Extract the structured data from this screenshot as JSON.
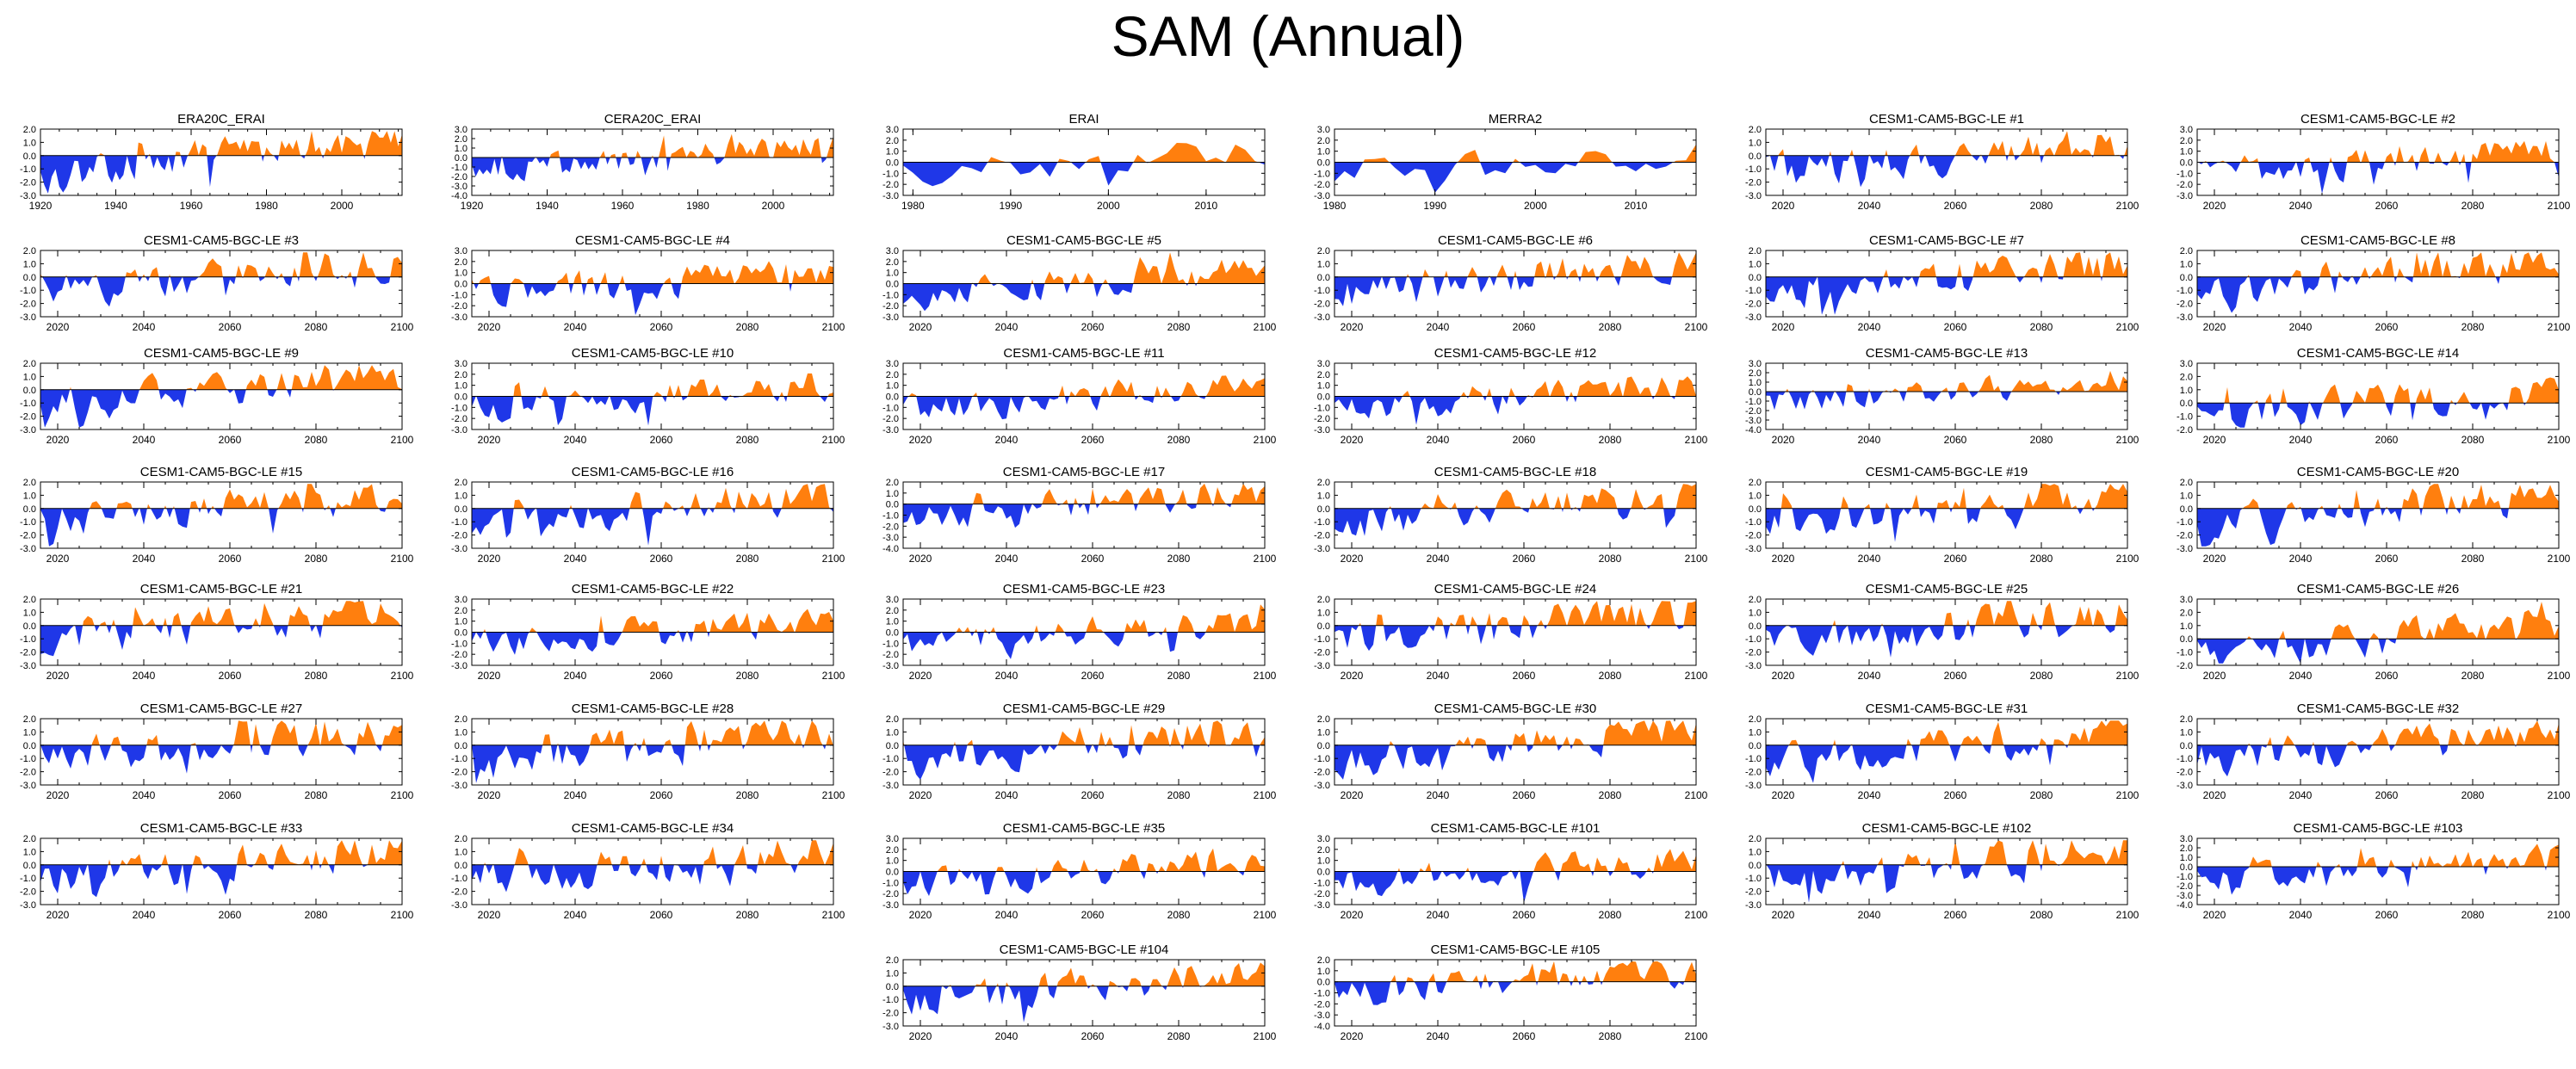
{
  "title": "SAM (Annual)",
  "colors": {
    "positive": "#ff7f0e",
    "negative": "#1f37e8",
    "axis": "#000000",
    "zero": "#000000"
  },
  "chart_data": [
    {
      "type": "area",
      "title": "ERA20C_ERAI",
      "x_range": [
        1920,
        2016
      ],
      "xticks": [
        1920,
        1940,
        1960,
        1980,
        2000
      ],
      "ylim": [
        -3,
        2
      ],
      "yticks": [
        -3,
        -2,
        -1,
        0,
        1,
        2
      ],
      "seed": 1,
      "trend": 1.2
    },
    {
      "type": "area",
      "title": "CERA20C_ERAI",
      "x_range": [
        1920,
        2016
      ],
      "xticks": [
        1920,
        1940,
        1960,
        1980,
        2000
      ],
      "ylim": [
        -4,
        3
      ],
      "yticks": [
        -4,
        -3,
        -2,
        -1,
        0,
        1,
        2,
        3
      ],
      "seed": 2,
      "trend": 0.9
    },
    {
      "type": "area",
      "title": "ERAI",
      "x_range": [
        1979,
        2016
      ],
      "xticks": [
        1980,
        1990,
        2000,
        2010
      ],
      "ylim": [
        -3,
        3
      ],
      "yticks": [
        -3,
        -2,
        -1,
        0,
        1,
        2,
        3
      ],
      "seed": 3,
      "trend": 0.6
    },
    {
      "type": "area",
      "title": "MERRA2",
      "x_range": [
        1980,
        2016
      ],
      "xticks": [
        1980,
        1990,
        2000,
        2010
      ],
      "ylim": [
        -3,
        3
      ],
      "yticks": [
        -3,
        -2,
        -1,
        0,
        1,
        2,
        3
      ],
      "seed": 4,
      "trend": 0.6
    },
    {
      "type": "area",
      "title": "CESM1-CAM5-BGC-LE #1",
      "x_range": [
        2016,
        2100
      ],
      "xticks": [
        2020,
        2040,
        2060,
        2080,
        2100
      ],
      "ylim": [
        -3,
        2
      ],
      "yticks": [
        -3,
        -2,
        -1,
        0,
        1,
        2
      ],
      "seed": 5,
      "trend": 0.8
    },
    {
      "type": "area",
      "title": "CESM1-CAM5-BGC-LE #2",
      "x_range": [
        2016,
        2100
      ],
      "xticks": [
        2020,
        2040,
        2060,
        2080,
        2100
      ],
      "ylim": [
        -3,
        3
      ],
      "yticks": [
        -3,
        -2,
        -1,
        0,
        1,
        2,
        3
      ],
      "seed": 6,
      "trend": 0.8
    },
    {
      "type": "area",
      "title": "CESM1-CAM5-BGC-LE #3",
      "x_range": [
        2016,
        2100
      ],
      "xticks": [
        2020,
        2040,
        2060,
        2080,
        2100
      ],
      "ylim": [
        -3,
        2
      ],
      "yticks": [
        -3,
        -2,
        -1,
        0,
        1,
        2
      ],
      "seed": 7,
      "trend": 0.8
    },
    {
      "type": "area",
      "title": "CESM1-CAM5-BGC-LE #4",
      "x_range": [
        2016,
        2100
      ],
      "xticks": [
        2020,
        2040,
        2060,
        2080,
        2100
      ],
      "ylim": [
        -3,
        3
      ],
      "yticks": [
        -3,
        -2,
        -1,
        0,
        1,
        2,
        3
      ],
      "seed": 8,
      "trend": 0.8
    },
    {
      "type": "area",
      "title": "CESM1-CAM5-BGC-LE #5",
      "x_range": [
        2016,
        2100
      ],
      "xticks": [
        2020,
        2040,
        2060,
        2080,
        2100
      ],
      "ylim": [
        -3,
        3
      ],
      "yticks": [
        -3,
        -2,
        -1,
        0,
        1,
        2,
        3
      ],
      "seed": 9,
      "trend": 0.8
    },
    {
      "type": "area",
      "title": "CESM1-CAM5-BGC-LE #6",
      "x_range": [
        2016,
        2100
      ],
      "xticks": [
        2020,
        2040,
        2060,
        2080,
        2100
      ],
      "ylim": [
        -3,
        2
      ],
      "yticks": [
        -3,
        -2,
        -1,
        0,
        1,
        2
      ],
      "seed": 10,
      "trend": 0.8
    },
    {
      "type": "area",
      "title": "CESM1-CAM5-BGC-LE #7",
      "x_range": [
        2016,
        2100
      ],
      "xticks": [
        2020,
        2040,
        2060,
        2080,
        2100
      ],
      "ylim": [
        -3,
        2
      ],
      "yticks": [
        -3,
        -2,
        -1,
        0,
        1,
        2
      ],
      "seed": 11,
      "trend": 0.8
    },
    {
      "type": "area",
      "title": "CESM1-CAM5-BGC-LE #8",
      "x_range": [
        2016,
        2100
      ],
      "xticks": [
        2020,
        2040,
        2060,
        2080,
        2100
      ],
      "ylim": [
        -3,
        2
      ],
      "yticks": [
        -3,
        -2,
        -1,
        0,
        1,
        2
      ],
      "seed": 12,
      "trend": 0.8
    },
    {
      "type": "area",
      "title": "CESM1-CAM5-BGC-LE #9",
      "x_range": [
        2016,
        2100
      ],
      "xticks": [
        2020,
        2040,
        2060,
        2080,
        2100
      ],
      "ylim": [
        -3,
        2
      ],
      "yticks": [
        -3,
        -2,
        -1,
        0,
        1,
        2
      ],
      "seed": 13,
      "trend": 0.8
    },
    {
      "type": "area",
      "title": "CESM1-CAM5-BGC-LE #10",
      "x_range": [
        2016,
        2100
      ],
      "xticks": [
        2020,
        2040,
        2060,
        2080,
        2100
      ],
      "ylim": [
        -3,
        3
      ],
      "yticks": [
        -3,
        -2,
        -1,
        0,
        1,
        2,
        3
      ],
      "seed": 14,
      "trend": 0.8
    },
    {
      "type": "area",
      "title": "CESM1-CAM5-BGC-LE #11",
      "x_range": [
        2016,
        2100
      ],
      "xticks": [
        2020,
        2040,
        2060,
        2080,
        2100
      ],
      "ylim": [
        -3,
        3
      ],
      "yticks": [
        -3,
        -2,
        -1,
        0,
        1,
        2,
        3
      ],
      "seed": 15,
      "trend": 0.8
    },
    {
      "type": "area",
      "title": "CESM1-CAM5-BGC-LE #12",
      "x_range": [
        2016,
        2100
      ],
      "xticks": [
        2020,
        2040,
        2060,
        2080,
        2100
      ],
      "ylim": [
        -3,
        3
      ],
      "yticks": [
        -3,
        -2,
        -1,
        0,
        1,
        2,
        3
      ],
      "seed": 16,
      "trend": 0.8
    },
    {
      "type": "area",
      "title": "CESM1-CAM5-BGC-LE #13",
      "x_range": [
        2016,
        2100
      ],
      "xticks": [
        2020,
        2040,
        2060,
        2080,
        2100
      ],
      "ylim": [
        -4,
        3
      ],
      "yticks": [
        -4,
        -3,
        -2,
        -1,
        0,
        1,
        2,
        3
      ],
      "seed": 17,
      "trend": 0.8
    },
    {
      "type": "area",
      "title": "CESM1-CAM5-BGC-LE #14",
      "x_range": [
        2016,
        2100
      ],
      "xticks": [
        2020,
        2040,
        2060,
        2080,
        2100
      ],
      "ylim": [
        -2,
        3
      ],
      "yticks": [
        -2,
        -1,
        0,
        1,
        2,
        3
      ],
      "seed": 18,
      "trend": 0.8
    },
    {
      "type": "area",
      "title": "CESM1-CAM5-BGC-LE #15",
      "x_range": [
        2016,
        2100
      ],
      "xticks": [
        2020,
        2040,
        2060,
        2080,
        2100
      ],
      "ylim": [
        -3,
        2
      ],
      "yticks": [
        -3,
        -2,
        -1,
        0,
        1,
        2
      ],
      "seed": 19,
      "trend": 0.8
    },
    {
      "type": "area",
      "title": "CESM1-CAM5-BGC-LE #16",
      "x_range": [
        2016,
        2100
      ],
      "xticks": [
        2020,
        2040,
        2060,
        2080,
        2100
      ],
      "ylim": [
        -3,
        2
      ],
      "yticks": [
        -3,
        -2,
        -1,
        0,
        1,
        2
      ],
      "seed": 20,
      "trend": 0.8
    },
    {
      "type": "area",
      "title": "CESM1-CAM5-BGC-LE #17",
      "x_range": [
        2016,
        2100
      ],
      "xticks": [
        2020,
        2040,
        2060,
        2080,
        2100
      ],
      "ylim": [
        -4,
        2
      ],
      "yticks": [
        -4,
        -3,
        -2,
        -1,
        0,
        1,
        2
      ],
      "seed": 21,
      "trend": 0.8
    },
    {
      "type": "area",
      "title": "CESM1-CAM5-BGC-LE #18",
      "x_range": [
        2016,
        2100
      ],
      "xticks": [
        2020,
        2040,
        2060,
        2080,
        2100
      ],
      "ylim": [
        -3,
        2
      ],
      "yticks": [
        -3,
        -2,
        -1,
        0,
        1,
        2
      ],
      "seed": 22,
      "trend": 0.8
    },
    {
      "type": "area",
      "title": "CESM1-CAM5-BGC-LE #19",
      "x_range": [
        2016,
        2100
      ],
      "xticks": [
        2020,
        2040,
        2060,
        2080,
        2100
      ],
      "ylim": [
        -3,
        2
      ],
      "yticks": [
        -3,
        -2,
        -1,
        0,
        1,
        2
      ],
      "seed": 23,
      "trend": 0.8
    },
    {
      "type": "area",
      "title": "CESM1-CAM5-BGC-LE #20",
      "x_range": [
        2016,
        2100
      ],
      "xticks": [
        2020,
        2040,
        2060,
        2080,
        2100
      ],
      "ylim": [
        -3,
        2
      ],
      "yticks": [
        -3,
        -2,
        -1,
        0,
        1,
        2
      ],
      "seed": 24,
      "trend": 0.8
    },
    {
      "type": "area",
      "title": "CESM1-CAM5-BGC-LE #21",
      "x_range": [
        2016,
        2100
      ],
      "xticks": [
        2020,
        2040,
        2060,
        2080,
        2100
      ],
      "ylim": [
        -3,
        2
      ],
      "yticks": [
        -3,
        -2,
        -1,
        0,
        1,
        2
      ],
      "seed": 25,
      "trend": 0.8
    },
    {
      "type": "area",
      "title": "CESM1-CAM5-BGC-LE #22",
      "x_range": [
        2016,
        2100
      ],
      "xticks": [
        2020,
        2040,
        2060,
        2080,
        2100
      ],
      "ylim": [
        -3,
        3
      ],
      "yticks": [
        -3,
        -2,
        -1,
        0,
        1,
        2,
        3
      ],
      "seed": 26,
      "trend": 0.8
    },
    {
      "type": "area",
      "title": "CESM1-CAM5-BGC-LE #23",
      "x_range": [
        2016,
        2100
      ],
      "xticks": [
        2020,
        2040,
        2060,
        2080,
        2100
      ],
      "ylim": [
        -3,
        3
      ],
      "yticks": [
        -3,
        -2,
        -1,
        0,
        1,
        2,
        3
      ],
      "seed": 27,
      "trend": 0.8
    },
    {
      "type": "area",
      "title": "CESM1-CAM5-BGC-LE #24",
      "x_range": [
        2016,
        2100
      ],
      "xticks": [
        2020,
        2040,
        2060,
        2080,
        2100
      ],
      "ylim": [
        -3,
        2
      ],
      "yticks": [
        -3,
        -2,
        -1,
        0,
        1,
        2
      ],
      "seed": 28,
      "trend": 0.8
    },
    {
      "type": "area",
      "title": "CESM1-CAM5-BGC-LE #25",
      "x_range": [
        2016,
        2100
      ],
      "xticks": [
        2020,
        2040,
        2060,
        2080,
        2100
      ],
      "ylim": [
        -3,
        2
      ],
      "yticks": [
        -3,
        -2,
        -1,
        0,
        1,
        2
      ],
      "seed": 29,
      "trend": 0.8
    },
    {
      "type": "area",
      "title": "CESM1-CAM5-BGC-LE #26",
      "x_range": [
        2016,
        2100
      ],
      "xticks": [
        2020,
        2040,
        2060,
        2080,
        2100
      ],
      "ylim": [
        -2,
        3
      ],
      "yticks": [
        -2,
        -1,
        0,
        1,
        2,
        3
      ],
      "seed": 30,
      "trend": 0.8
    },
    {
      "type": "area",
      "title": "CESM1-CAM5-BGC-LE #27",
      "x_range": [
        2016,
        2100
      ],
      "xticks": [
        2020,
        2040,
        2060,
        2080,
        2100
      ],
      "ylim": [
        -3,
        2
      ],
      "yticks": [
        -3,
        -2,
        -1,
        0,
        1,
        2
      ],
      "seed": 31,
      "trend": 0.8
    },
    {
      "type": "area",
      "title": "CESM1-CAM5-BGC-LE #28",
      "x_range": [
        2016,
        2100
      ],
      "xticks": [
        2020,
        2040,
        2060,
        2080,
        2100
      ],
      "ylim": [
        -3,
        2
      ],
      "yticks": [
        -3,
        -2,
        -1,
        0,
        1,
        2
      ],
      "seed": 32,
      "trend": 0.8
    },
    {
      "type": "area",
      "title": "CESM1-CAM5-BGC-LE #29",
      "x_range": [
        2016,
        2100
      ],
      "xticks": [
        2020,
        2040,
        2060,
        2080,
        2100
      ],
      "ylim": [
        -3,
        2
      ],
      "yticks": [
        -3,
        -2,
        -1,
        0,
        1,
        2
      ],
      "seed": 33,
      "trend": 0.8
    },
    {
      "type": "area",
      "title": "CESM1-CAM5-BGC-LE #30",
      "x_range": [
        2016,
        2100
      ],
      "xticks": [
        2020,
        2040,
        2060,
        2080,
        2100
      ],
      "ylim": [
        -3,
        2
      ],
      "yticks": [
        -3,
        -2,
        -1,
        0,
        1,
        2
      ],
      "seed": 34,
      "trend": 0.8
    },
    {
      "type": "area",
      "title": "CESM1-CAM5-BGC-LE #31",
      "x_range": [
        2016,
        2100
      ],
      "xticks": [
        2020,
        2040,
        2060,
        2080,
        2100
      ],
      "ylim": [
        -3,
        2
      ],
      "yticks": [
        -3,
        -2,
        -1,
        0,
        1,
        2
      ],
      "seed": 35,
      "trend": 0.8
    },
    {
      "type": "area",
      "title": "CESM1-CAM5-BGC-LE #32",
      "x_range": [
        2016,
        2100
      ],
      "xticks": [
        2020,
        2040,
        2060,
        2080,
        2100
      ],
      "ylim": [
        -3,
        2
      ],
      "yticks": [
        -3,
        -2,
        -1,
        0,
        1,
        2
      ],
      "seed": 36,
      "trend": 0.8
    },
    {
      "type": "area",
      "title": "CESM1-CAM5-BGC-LE #33",
      "x_range": [
        2016,
        2100
      ],
      "xticks": [
        2020,
        2040,
        2060,
        2080,
        2100
      ],
      "ylim": [
        -3,
        2
      ],
      "yticks": [
        -3,
        -2,
        -1,
        0,
        1,
        2
      ],
      "seed": 37,
      "trend": 0.8
    },
    {
      "type": "area",
      "title": "CESM1-CAM5-BGC-LE #34",
      "x_range": [
        2016,
        2100
      ],
      "xticks": [
        2020,
        2040,
        2060,
        2080,
        2100
      ],
      "ylim": [
        -3,
        2
      ],
      "yticks": [
        -3,
        -2,
        -1,
        0,
        1,
        2
      ],
      "seed": 38,
      "trend": 0.8
    },
    {
      "type": "area",
      "title": "CESM1-CAM5-BGC-LE #35",
      "x_range": [
        2016,
        2100
      ],
      "xticks": [
        2020,
        2040,
        2060,
        2080,
        2100
      ],
      "ylim": [
        -3,
        3
      ],
      "yticks": [
        -3,
        -2,
        -1,
        0,
        1,
        2,
        3
      ],
      "seed": 39,
      "trend": 0.8
    },
    {
      "type": "area",
      "title": "CESM1-CAM5-BGC-LE #101",
      "x_range": [
        2016,
        2100
      ],
      "xticks": [
        2020,
        2040,
        2060,
        2080,
        2100
      ],
      "ylim": [
        -3,
        3
      ],
      "yticks": [
        -3,
        -2,
        -1,
        0,
        1,
        2,
        3
      ],
      "seed": 40,
      "trend": 0.8
    },
    {
      "type": "area",
      "title": "CESM1-CAM5-BGC-LE #102",
      "x_range": [
        2016,
        2100
      ],
      "xticks": [
        2020,
        2040,
        2060,
        2080,
        2100
      ],
      "ylim": [
        -3,
        2
      ],
      "yticks": [
        -3,
        -2,
        -1,
        0,
        1,
        2
      ],
      "seed": 41,
      "trend": 0.8
    },
    {
      "type": "area",
      "title": "CESM1-CAM5-BGC-LE #103",
      "x_range": [
        2016,
        2100
      ],
      "xticks": [
        2020,
        2040,
        2060,
        2080,
        2100
      ],
      "ylim": [
        -4,
        3
      ],
      "yticks": [
        -4,
        -3,
        -2,
        -1,
        0,
        1,
        2,
        3
      ],
      "seed": 42,
      "trend": 0.8
    },
    {
      "type": "area",
      "title": "CESM1-CAM5-BGC-LE #104",
      "x_range": [
        2016,
        2100
      ],
      "xticks": [
        2020,
        2040,
        2060,
        2080,
        2100
      ],
      "ylim": [
        -3,
        2
      ],
      "yticks": [
        -3,
        -2,
        -1,
        0,
        1,
        2
      ],
      "seed": 43,
      "trend": 0.8
    },
    {
      "type": "area",
      "title": "CESM1-CAM5-BGC-LE #105",
      "x_range": [
        2016,
        2100
      ],
      "xticks": [
        2020,
        2040,
        2060,
        2080,
        2100
      ],
      "ylim": [
        -4,
        2
      ],
      "yticks": [
        -4,
        -3,
        -2,
        -1,
        0,
        1,
        2
      ],
      "seed": 44,
      "trend": 0.8
    }
  ]
}
